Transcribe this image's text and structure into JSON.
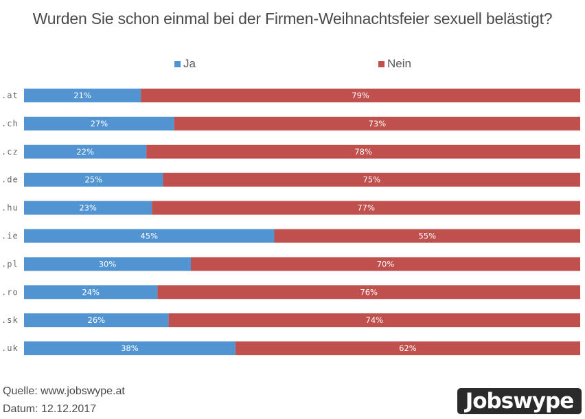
{
  "chart_data": {
    "type": "bar",
    "orientation": "horizontal",
    "stacked": true,
    "percent": true,
    "title": "Wurden Sie schon einmal bei der Firmen-Weihnachtsfeier  sexuell belästigt?",
    "xlabel": "",
    "ylabel": "",
    "xlim": [
      0,
      100
    ],
    "grid": false,
    "legend_position": "top",
    "categories": [
      ".at",
      ".ch",
      ".cz",
      ".de",
      ".hu",
      ".ie",
      ".pl",
      ".ro",
      ".sk",
      ".uk"
    ],
    "series": [
      {
        "name": "Ja",
        "color": "#5294D2",
        "values": [
          21,
          27,
          22,
          25,
          23,
          45,
          30,
          24,
          26,
          38
        ]
      },
      {
        "name": "Nein",
        "color": "#C0504D",
        "values": [
          79,
          73,
          78,
          75,
          77,
          55,
          70,
          76,
          74,
          62
        ]
      }
    ],
    "value_suffix": "%"
  },
  "footer": {
    "source": "Quelle: www.jobswype.at",
    "date": "Datum: 12.12.2017"
  },
  "logo": {
    "text": "Jobswype"
  }
}
